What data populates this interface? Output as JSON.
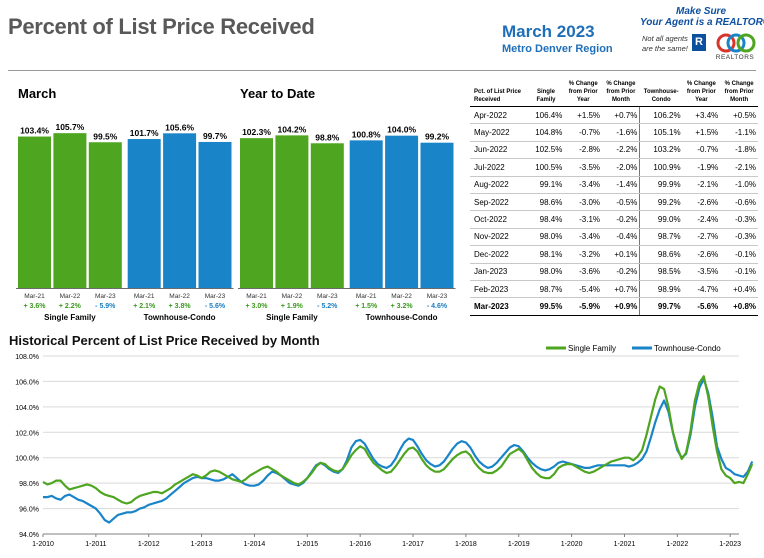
{
  "header": {
    "title": "Percent of List Price Received",
    "month": "March 2023",
    "region": "Metro Denver Region",
    "logo_line1": "Make Sure",
    "logo_line2": "Your Agent is a REALTOR®",
    "logo_note": "Not all agents are the same!",
    "logo_r": "R",
    "logo_realtors": "REALTORS"
  },
  "colors": {
    "single_family": "#4ea51f",
    "townhouse": "#1a84c8",
    "positive": "#3a9a1e",
    "negative": "#1a7ec4",
    "title_gray": "#595959"
  },
  "chart_data": [
    {
      "type": "bar",
      "title": "March",
      "groups": [
        "Single Family",
        "Townhouse-Condo"
      ],
      "categories": [
        "Mar-21",
        "Mar-22",
        "Mar-23",
        "Mar-21",
        "Mar-22",
        "Mar-23"
      ],
      "values": [
        103.4,
        105.7,
        99.5,
        101.7,
        105.6,
        99.7
      ],
      "value_labels": [
        "103.4%",
        "105.7%",
        "99.5%",
        "101.7%",
        "105.6%",
        "99.7%"
      ],
      "changes": [
        "+ 3.6%",
        "+ 2.2%",
        "- 5.9%",
        "+ 2.1%",
        "+ 3.8%",
        "- 5.6%"
      ]
    },
    {
      "type": "bar",
      "title": "Year to Date",
      "groups": [
        "Single Family",
        "Townhouse-Condo"
      ],
      "categories": [
        "Mar-21",
        "Mar-22",
        "Mar-23",
        "Mar-21",
        "Mar-22",
        "Mar-23"
      ],
      "values": [
        102.3,
        104.2,
        98.8,
        100.8,
        104.0,
        99.2
      ],
      "value_labels": [
        "102.3%",
        "104.2%",
        "98.8%",
        "100.8%",
        "104.0%",
        "99.2%"
      ],
      "changes": [
        "+ 3.0%",
        "+ 1.9%",
        "- 5.2%",
        "+ 1.5%",
        "+ 3.2%",
        "- 4.6%"
      ]
    },
    {
      "type": "table",
      "headers": [
        "Pct. of List Price Received",
        "Single Family",
        "% Change from Prior Year",
        "% Change from Prior Month",
        "Townhouse-Condo",
        "% Change from Prior Year",
        "% Change from Prior Month"
      ],
      "rows": [
        [
          "Apr-2022",
          "106.4%",
          "+1.5%",
          "+0.7%",
          "106.2%",
          "+3.4%",
          "+0.5%"
        ],
        [
          "May-2022",
          "104.8%",
          "-0.7%",
          "-1.6%",
          "105.1%",
          "+1.5%",
          "-1.1%"
        ],
        [
          "Jun-2022",
          "102.5%",
          "-2.8%",
          "-2.2%",
          "103.2%",
          "-0.7%",
          "-1.8%"
        ],
        [
          "Jul-2022",
          "100.5%",
          "-3.5%",
          "-2.0%",
          "100.9%",
          "-1.9%",
          "-2.1%"
        ],
        [
          "Aug-2022",
          "99.1%",
          "-3.4%",
          "-1.4%",
          "99.9%",
          "-2.1%",
          "-1.0%"
        ],
        [
          "Sep-2022",
          "98.6%",
          "-3.0%",
          "-0.5%",
          "99.2%",
          "-2.6%",
          "-0.6%"
        ],
        [
          "Oct-2022",
          "98.4%",
          "-3.1%",
          "-0.2%",
          "99.0%",
          "-2.4%",
          "-0.3%"
        ],
        [
          "Nov-2022",
          "98.0%",
          "-3.4%",
          "-0.4%",
          "98.7%",
          "-2.7%",
          "-0.3%"
        ],
        [
          "Dec-2022",
          "98.1%",
          "-3.2%",
          "+0.1%",
          "98.6%",
          "-2.6%",
          "-0.1%"
        ],
        [
          "Jan-2023",
          "98.0%",
          "-3.6%",
          "-0.2%",
          "98.5%",
          "-3.5%",
          "-0.1%"
        ],
        [
          "Feb-2023",
          "98.7%",
          "-5.4%",
          "+0.7%",
          "98.9%",
          "-4.7%",
          "+0.4%"
        ],
        [
          "Mar-2023",
          "99.5%",
          "-5.9%",
          "+0.9%",
          "99.7%",
          "-5.6%",
          "+0.8%"
        ]
      ]
    },
    {
      "type": "line",
      "title": "Historical Percent of List Price Received by Month",
      "x_tick_labels": [
        "1-2010",
        "1-2011",
        "1-2012",
        "1-2013",
        "1-2014",
        "1-2015",
        "1-2016",
        "1-2017",
        "1-2018",
        "1-2019",
        "1-2020",
        "1-2021",
        "1-2022",
        "1-2023"
      ],
      "y_tick_labels": [
        "94.0%",
        "96.0%",
        "98.0%",
        "100.0%",
        "102.0%",
        "104.0%",
        "106.0%",
        "108.0%"
      ],
      "ylim": [
        94,
        108
      ],
      "x_start": "2010-01",
      "legend_position": "top-right",
      "series": [
        {
          "name": "Single Family",
          "color": "#4ea51f",
          "values": [
            98.1,
            97.9,
            98.0,
            98.2,
            98.2,
            97.8,
            97.5,
            97.6,
            97.7,
            97.8,
            97.9,
            97.8,
            97.6,
            97.3,
            97.1,
            97.0,
            96.9,
            96.7,
            96.5,
            96.4,
            96.5,
            96.8,
            97.0,
            97.1,
            97.2,
            97.3,
            97.3,
            97.2,
            97.4,
            97.6,
            97.9,
            98.1,
            98.3,
            98.5,
            98.7,
            98.6,
            98.4,
            98.6,
            98.9,
            99.0,
            98.9,
            98.7,
            98.5,
            98.3,
            98.2,
            98.1,
            98.3,
            98.6,
            98.8,
            99.0,
            99.2,
            99.3,
            99.1,
            98.9,
            98.6,
            98.4,
            98.2,
            98.0,
            97.9,
            98.1,
            98.4,
            98.8,
            99.3,
            99.6,
            99.5,
            99.2,
            99.0,
            98.9,
            99.1,
            99.6,
            100.2,
            100.6,
            100.9,
            100.7,
            100.1,
            99.6,
            99.3,
            99.0,
            98.8,
            98.9,
            99.3,
            99.8,
            100.3,
            100.7,
            100.8,
            100.5,
            99.9,
            99.4,
            99.1,
            98.9,
            98.9,
            99.1,
            99.5,
            99.9,
            100.2,
            100.4,
            100.5,
            100.2,
            99.6,
            99.2,
            98.9,
            98.8,
            98.8,
            99.0,
            99.3,
            99.8,
            100.3,
            100.5,
            100.7,
            100.4,
            99.8,
            99.2,
            98.8,
            98.5,
            98.4,
            98.4,
            98.7,
            99.2,
            99.4,
            99.5,
            99.5,
            99.3,
            99.1,
            98.9,
            98.8,
            98.9,
            99.1,
            99.3,
            99.5,
            99.7,
            99.8,
            99.9,
            100.0,
            100.0,
            99.8,
            100.1,
            100.6,
            101.8,
            103.2,
            104.6,
            105.6,
            105.4,
            104.0,
            102.0,
            100.8,
            99.9,
            100.4,
            102.1,
            104.5,
            105.9,
            106.4,
            104.8,
            102.5,
            100.5,
            99.1,
            98.6,
            98.4,
            98.0,
            98.1,
            98.0,
            98.7,
            99.5
          ]
        },
        {
          "name": "Townhouse-Condo",
          "color": "#1a84c8",
          "values": [
            96.9,
            96.9,
            97.0,
            96.8,
            96.7,
            97.0,
            97.1,
            96.9,
            96.7,
            96.6,
            96.4,
            96.2,
            96.0,
            95.6,
            95.1,
            94.9,
            95.2,
            95.5,
            95.6,
            95.7,
            95.7,
            95.8,
            96.0,
            96.1,
            96.3,
            96.4,
            96.5,
            96.6,
            96.8,
            97.1,
            97.4,
            97.7,
            98.0,
            98.2,
            98.4,
            98.5,
            98.4,
            98.4,
            98.3,
            98.2,
            98.2,
            98.3,
            98.5,
            98.7,
            98.4,
            98.1,
            97.9,
            97.8,
            97.8,
            97.9,
            98.2,
            98.6,
            98.9,
            98.8,
            98.6,
            98.3,
            98.0,
            97.9,
            97.8,
            98.0,
            98.4,
            98.9,
            99.4,
            99.6,
            99.4,
            99.1,
            98.9,
            98.8,
            99.1,
            99.8,
            100.8,
            101.3,
            101.4,
            101.1,
            100.5,
            99.9,
            99.5,
            99.3,
            99.2,
            99.4,
            99.9,
            100.6,
            101.2,
            101.5,
            101.4,
            100.9,
            100.3,
            99.8,
            99.5,
            99.3,
            99.4,
            99.7,
            100.2,
            100.7,
            101.1,
            101.3,
            101.2,
            100.8,
            100.2,
            99.7,
            99.4,
            99.2,
            99.3,
            99.6,
            100.0,
            100.4,
            100.8,
            101.0,
            100.9,
            100.5,
            100.0,
            99.6,
            99.3,
            99.1,
            99.0,
            99.1,
            99.3,
            99.6,
            99.7,
            99.6,
            99.5,
            99.4,
            99.3,
            99.2,
            99.2,
            99.3,
            99.4,
            99.4,
            99.4,
            99.4,
            99.4,
            99.4,
            99.4,
            99.3,
            99.4,
            99.6,
            99.9,
            100.5,
            101.6,
            102.8,
            103.8,
            104.5,
            103.6,
            102.0,
            100.6,
            100.0,
            100.3,
            101.8,
            104.0,
            105.5,
            106.2,
            105.1,
            103.2,
            100.9,
            99.9,
            99.2,
            99.0,
            98.7,
            98.6,
            98.5,
            98.9,
            99.7
          ]
        }
      ]
    }
  ]
}
